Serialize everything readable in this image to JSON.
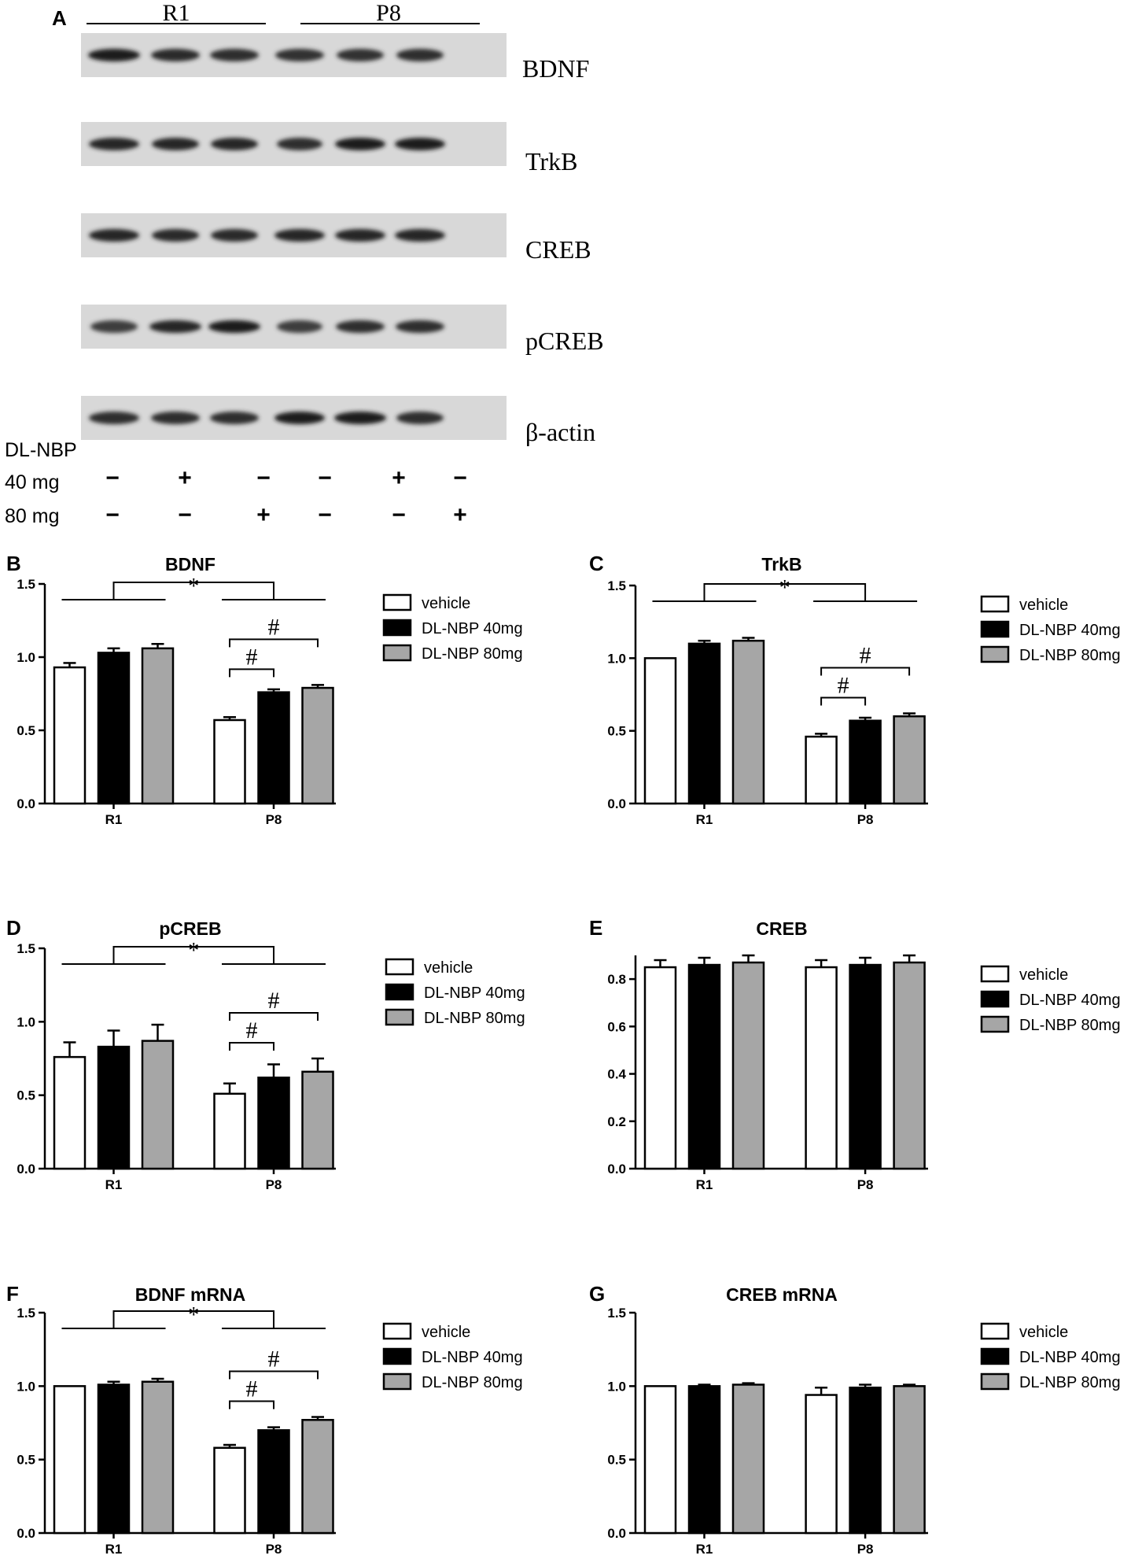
{
  "blot": {
    "panel_label": "A",
    "groups": [
      "R1",
      "P8"
    ],
    "proteins": [
      "BDNF",
      "TrkB",
      "CREB",
      "pCREB",
      "β-actin"
    ],
    "treatment": {
      "drug": "DL-NBP",
      "rows": [
        {
          "label": "40 mg",
          "signs": [
            "−",
            "+",
            "−",
            "−",
            "+",
            "−"
          ]
        },
        {
          "label": "80 mg",
          "signs": [
            "−",
            "−",
            "+",
            "−",
            "−",
            "+"
          ]
        }
      ]
    }
  },
  "legend": [
    "vehicle",
    "DL-NBP 40mg",
    "DL-NBP 80mg"
  ],
  "colors": {
    "vehicle": "#ffffff",
    "DL-NBP 40mg": "#000000",
    "DL-NBP 80mg": "#a6a6a6"
  },
  "chart_data": [
    {
      "panel": "B",
      "type": "bar",
      "title": "BDNF",
      "categories": [
        "R1",
        "P8"
      ],
      "ylim": [
        0,
        1.5
      ],
      "yticks": [
        "0.0",
        "0.5",
        "1.0",
        "1.5"
      ],
      "series": [
        {
          "name": "vehicle",
          "values": [
            0.93,
            0.57
          ],
          "errors": [
            0.03,
            0.02
          ]
        },
        {
          "name": "DL-NBP 40mg",
          "values": [
            1.03,
            0.76
          ],
          "errors": [
            0.03,
            0.02
          ]
        },
        {
          "name": "DL-NBP 80mg",
          "values": [
            1.06,
            0.79
          ],
          "errors": [
            0.03,
            0.02
          ]
        }
      ],
      "annotations": [
        "*",
        "#",
        "#"
      ]
    },
    {
      "panel": "C",
      "type": "bar",
      "title": "TrkB",
      "categories": [
        "R1",
        "P8"
      ],
      "ylim": [
        0,
        1.5
      ],
      "yticks": [
        "0.0",
        "0.5",
        "1.0",
        "1.5"
      ],
      "series": [
        {
          "name": "vehicle",
          "values": [
            1.0,
            0.46
          ],
          "errors": [
            0.0,
            0.02
          ]
        },
        {
          "name": "DL-NBP 40mg",
          "values": [
            1.1,
            0.57
          ],
          "errors": [
            0.02,
            0.02
          ]
        },
        {
          "name": "DL-NBP 80mg",
          "values": [
            1.12,
            0.6
          ],
          "errors": [
            0.02,
            0.02
          ]
        }
      ],
      "annotations": [
        "*",
        "#",
        "#"
      ]
    },
    {
      "panel": "D",
      "type": "bar",
      "title": "pCREB",
      "categories": [
        "R1",
        "P8"
      ],
      "ylim": [
        0,
        1.5
      ],
      "yticks": [
        "0.0",
        "0.5",
        "1.0",
        "1.5"
      ],
      "series": [
        {
          "name": "vehicle",
          "values": [
            0.76,
            0.51
          ],
          "errors": [
            0.1,
            0.07
          ]
        },
        {
          "name": "DL-NBP 40mg",
          "values": [
            0.83,
            0.62
          ],
          "errors": [
            0.11,
            0.09
          ]
        },
        {
          "name": "DL-NBP 80mg",
          "values": [
            0.87,
            0.66
          ],
          "errors": [
            0.11,
            0.09
          ]
        }
      ],
      "annotations": [
        "*",
        "#",
        "#"
      ]
    },
    {
      "panel": "E",
      "type": "bar",
      "title": "CREB",
      "categories": [
        "R1",
        "P8"
      ],
      "ylim": [
        0,
        0.9
      ],
      "yticks": [
        "0.0",
        "0.2",
        "0.4",
        "0.6",
        "0.8"
      ],
      "series": [
        {
          "name": "vehicle",
          "values": [
            0.85,
            0.85
          ],
          "errors": [
            0.03,
            0.03
          ]
        },
        {
          "name": "DL-NBP 40mg",
          "values": [
            0.86,
            0.86
          ],
          "errors": [
            0.03,
            0.03
          ]
        },
        {
          "name": "DL-NBP 80mg",
          "values": [
            0.87,
            0.87
          ],
          "errors": [
            0.03,
            0.03
          ]
        }
      ],
      "annotations": []
    },
    {
      "panel": "F",
      "type": "bar",
      "title": "BDNF mRNA",
      "categories": [
        "R1",
        "P8"
      ],
      "ylim": [
        0,
        1.5
      ],
      "yticks": [
        "0.0",
        "0.5",
        "1.0",
        "1.5"
      ],
      "series": [
        {
          "name": "vehicle",
          "values": [
            1.0,
            0.58
          ],
          "errors": [
            0.0,
            0.02
          ]
        },
        {
          "name": "DL-NBP 40mg",
          "values": [
            1.01,
            0.7
          ],
          "errors": [
            0.02,
            0.02
          ]
        },
        {
          "name": "DL-NBP 80mg",
          "values": [
            1.03,
            0.77
          ],
          "errors": [
            0.02,
            0.02
          ]
        }
      ],
      "annotations": [
        "*",
        "#",
        "#"
      ]
    },
    {
      "panel": "G",
      "type": "bar",
      "title": "CREB mRNA",
      "categories": [
        "R1",
        "P8"
      ],
      "ylim": [
        0,
        1.5
      ],
      "yticks": [
        "0.0",
        "0.5",
        "1.0",
        "1.5"
      ],
      "series": [
        {
          "name": "vehicle",
          "values": [
            1.0,
            0.94
          ],
          "errors": [
            0.0,
            0.05
          ]
        },
        {
          "name": "DL-NBP 40mg",
          "values": [
            1.0,
            0.99
          ],
          "errors": [
            0.01,
            0.02
          ]
        },
        {
          "name": "DL-NBP 80mg",
          "values": [
            1.01,
            1.0
          ],
          "errors": [
            0.01,
            0.01
          ]
        }
      ],
      "annotations": []
    }
  ]
}
